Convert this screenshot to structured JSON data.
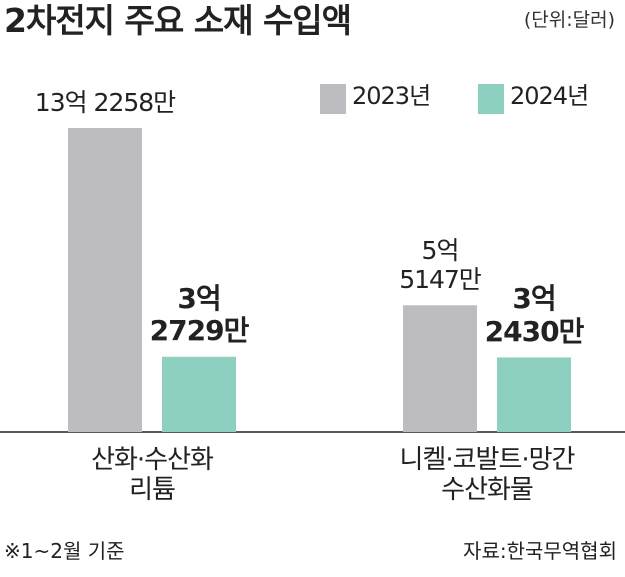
{
  "chart_data": {
    "type": "bar",
    "title": "2차전지 주요 소재 수입액",
    "unit": "(단위:달러)",
    "categories": [
      "산화·수산화\n리튬",
      "니켈·코발트·망간\n수산화물"
    ],
    "series": [
      {
        "name": "2023년",
        "color": "#bdbcc1",
        "values": [
          1322580000,
          551470000
        ],
        "value_labels": [
          "13억 2258만",
          "5억\n5147만"
        ]
      },
      {
        "name": "2024년",
        "color": "#8ed0c0",
        "values": [
          327290000,
          324300000
        ],
        "value_labels": [
          "3억\n2729만",
          "3억\n2430만"
        ]
      }
    ],
    "note": "※1~2월 기준",
    "source": "자료:한국무역협회"
  }
}
